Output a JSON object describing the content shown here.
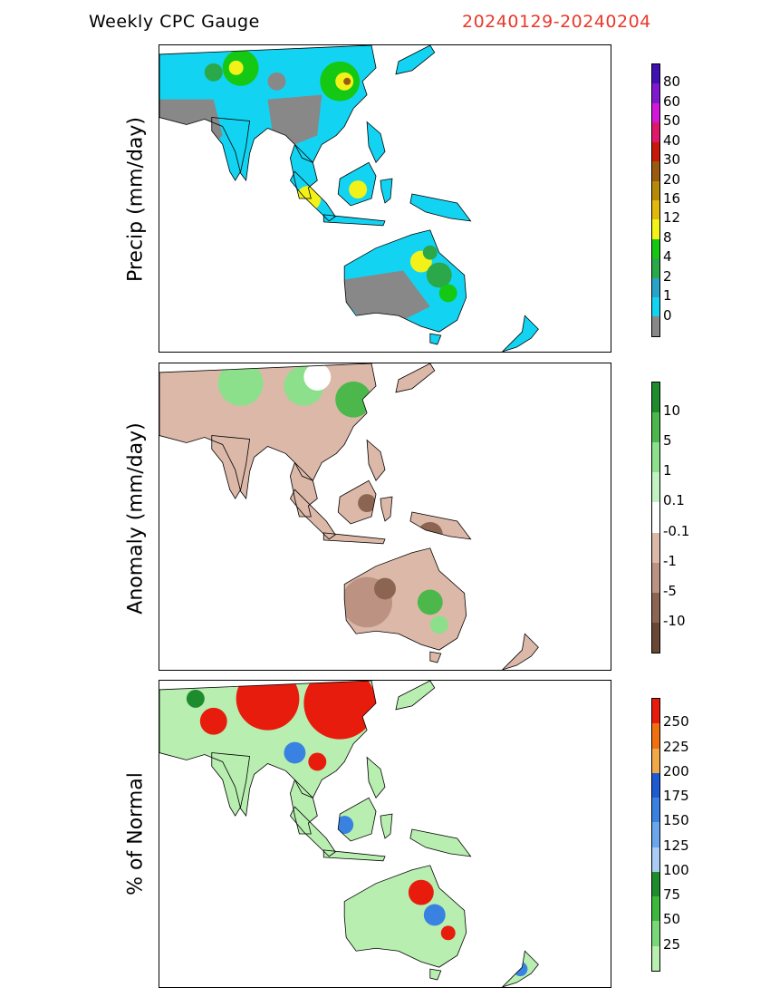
{
  "header": {
    "title": "Weekly CPC Gauge",
    "date_range": "20240129-20240204",
    "date_color": "#e8392a"
  },
  "chart_data": [
    {
      "type": "heatmap",
      "ylabel": "Precip (mm/day)",
      "legend_placement": "right",
      "colorbar": {
        "levels": [
          "0",
          "1",
          "2",
          "4",
          "8",
          "12",
          "16",
          "20",
          "30",
          "40",
          "50",
          "60",
          "80"
        ],
        "colors": [
          "#888888",
          "#12d4f2",
          "#2aa3c9",
          "#2aa84a",
          "#14c814",
          "#f2f218",
          "#e2b80c",
          "#b68a08",
          "#9a5a10",
          "#c81808",
          "#e0186a",
          "#d218d8",
          "#8018d0",
          "#4010b0"
        ]
      }
    },
    {
      "type": "heatmap",
      "ylabel": "Anomaly (mm/day)",
      "legend_placement": "right",
      "colorbar": {
        "levels": [
          "10",
          "5",
          "1",
          "0.1",
          "-0.1",
          "-1",
          "-5",
          "-10"
        ],
        "colors": [
          "#1e8c2c",
          "#4cb84c",
          "#8ce08c",
          "#c2f2c2",
          "#ffffff",
          "#dcb8a8",
          "#bc9282",
          "#8c6452",
          "#6a4634"
        ]
      }
    },
    {
      "type": "heatmap",
      "ylabel": "% of Normal",
      "legend_placement": "right",
      "colorbar": {
        "levels": [
          "250",
          "225",
          "200",
          "175",
          "150",
          "125",
          "100",
          "75",
          "50",
          "25"
        ],
        "colors": [
          "#e81c0c",
          "#f07010",
          "#f0a848",
          "#1e5ad2",
          "#3a82e2",
          "#6aa6ee",
          "#a8ccf4",
          "#1e8c2c",
          "#3cb83c",
          "#78d878",
          "#b8eeb0"
        ]
      }
    }
  ]
}
